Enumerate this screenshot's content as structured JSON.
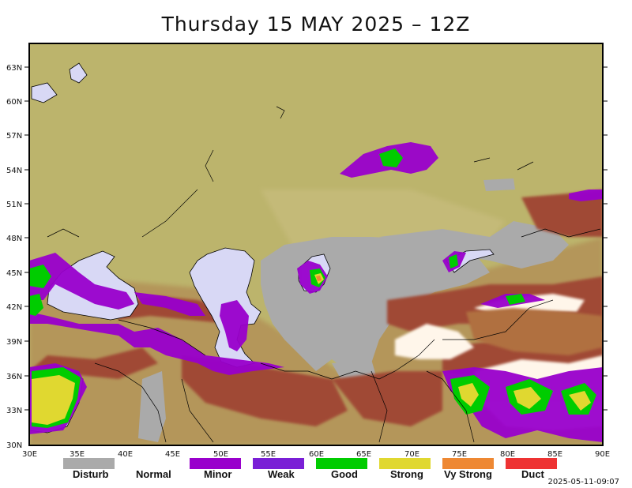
{
  "title": "Thursday 15 MAY 2025 – 12Z",
  "timestamp": "2025-05-11-09:07",
  "lat_labels": [
    "63N",
    "60N",
    "57N",
    "54N",
    "51N",
    "48N",
    "45N",
    "42N",
    "39N",
    "36N",
    "33N",
    "30N"
  ],
  "lon_labels": [
    "30E",
    "35E",
    "40E",
    "45E",
    "50E",
    "55E",
    "60E",
    "65E",
    "70E",
    "75E",
    "80E",
    "85E",
    "90E"
  ],
  "legend": [
    {
      "label": "Disturb",
      "color": "#aaaaaa"
    },
    {
      "label": "Normal",
      "color": "#ffffff"
    },
    {
      "label": "Minor",
      "color": "#9900cc"
    },
    {
      "label": "Weak",
      "color": "#7a1fd6"
    },
    {
      "label": "Good",
      "color": "#00cc00"
    },
    {
      "label": "Strong",
      "color": "#e0d830"
    },
    {
      "label": "Vy Strong",
      "color": "#ee8833"
    },
    {
      "label": "Duct",
      "color": "#ee3333"
    }
  ],
  "colors": {
    "land": "#bcb46c",
    "highland": "#b4965a",
    "mountain": "#a04a36",
    "snow": "#fff6ea",
    "water": "#d8d8f5",
    "disturb": "#aaaaaa"
  }
}
